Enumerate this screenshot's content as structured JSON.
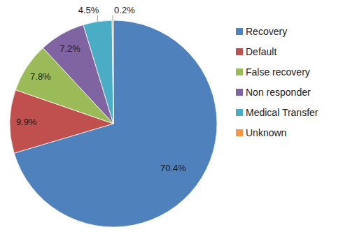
{
  "chart_data": {
    "type": "pie",
    "categories": [
      "Recovery",
      "Default",
      "False recovery",
      "Non responder",
      "Medical Transfer",
      "Unknown"
    ],
    "values": [
      70.4,
      9.9,
      7.8,
      7.2,
      4.5,
      0.2
    ],
    "value_labels": [
      "70.4%",
      "9.9%",
      "7.8%",
      "7.2%",
      "4.5%",
      "0.2%"
    ],
    "colors": [
      "#4f81bd",
      "#c0504d",
      "#9bbb59",
      "#8064a2",
      "#4bacc6",
      "#f79646"
    ],
    "data_labels": true,
    "legend": "right"
  }
}
